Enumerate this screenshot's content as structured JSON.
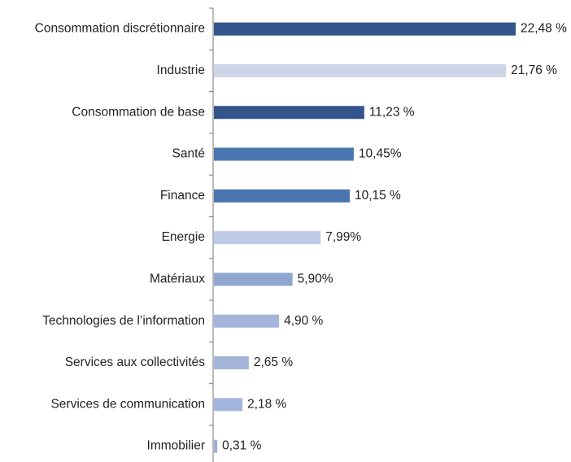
{
  "chart_data": {
    "type": "barh",
    "categories": [
      "Consommation discrétionnaire",
      "Industrie",
      "Consommation de base",
      "Santé",
      "Finance",
      "Energie",
      "Matériaux",
      "Technologies de l’information",
      "Services aux collectivités",
      "Services de communication",
      "Immobilier"
    ],
    "values": [
      22.48,
      21.76,
      11.23,
      10.45,
      10.15,
      7.99,
      5.9,
      4.9,
      2.65,
      2.18,
      0.31
    ],
    "value_labels": [
      "22,48 %",
      "21,76 %",
      "11,23 %",
      "10,45%",
      "10,15 %",
      "7,99%",
      "5,90%",
      "4,90 %",
      "2,65 %",
      "2,18 %",
      "0,31 %"
    ],
    "colors": [
      "#34558b",
      "#cdd5e8",
      "#34558b",
      "#4a76b0",
      "#4a76b0",
      "#bccae6",
      "#8fa6d0",
      "#a3b5db",
      "#a3b5db",
      "#a3b5db",
      "#9cb0d8"
    ]
  }
}
